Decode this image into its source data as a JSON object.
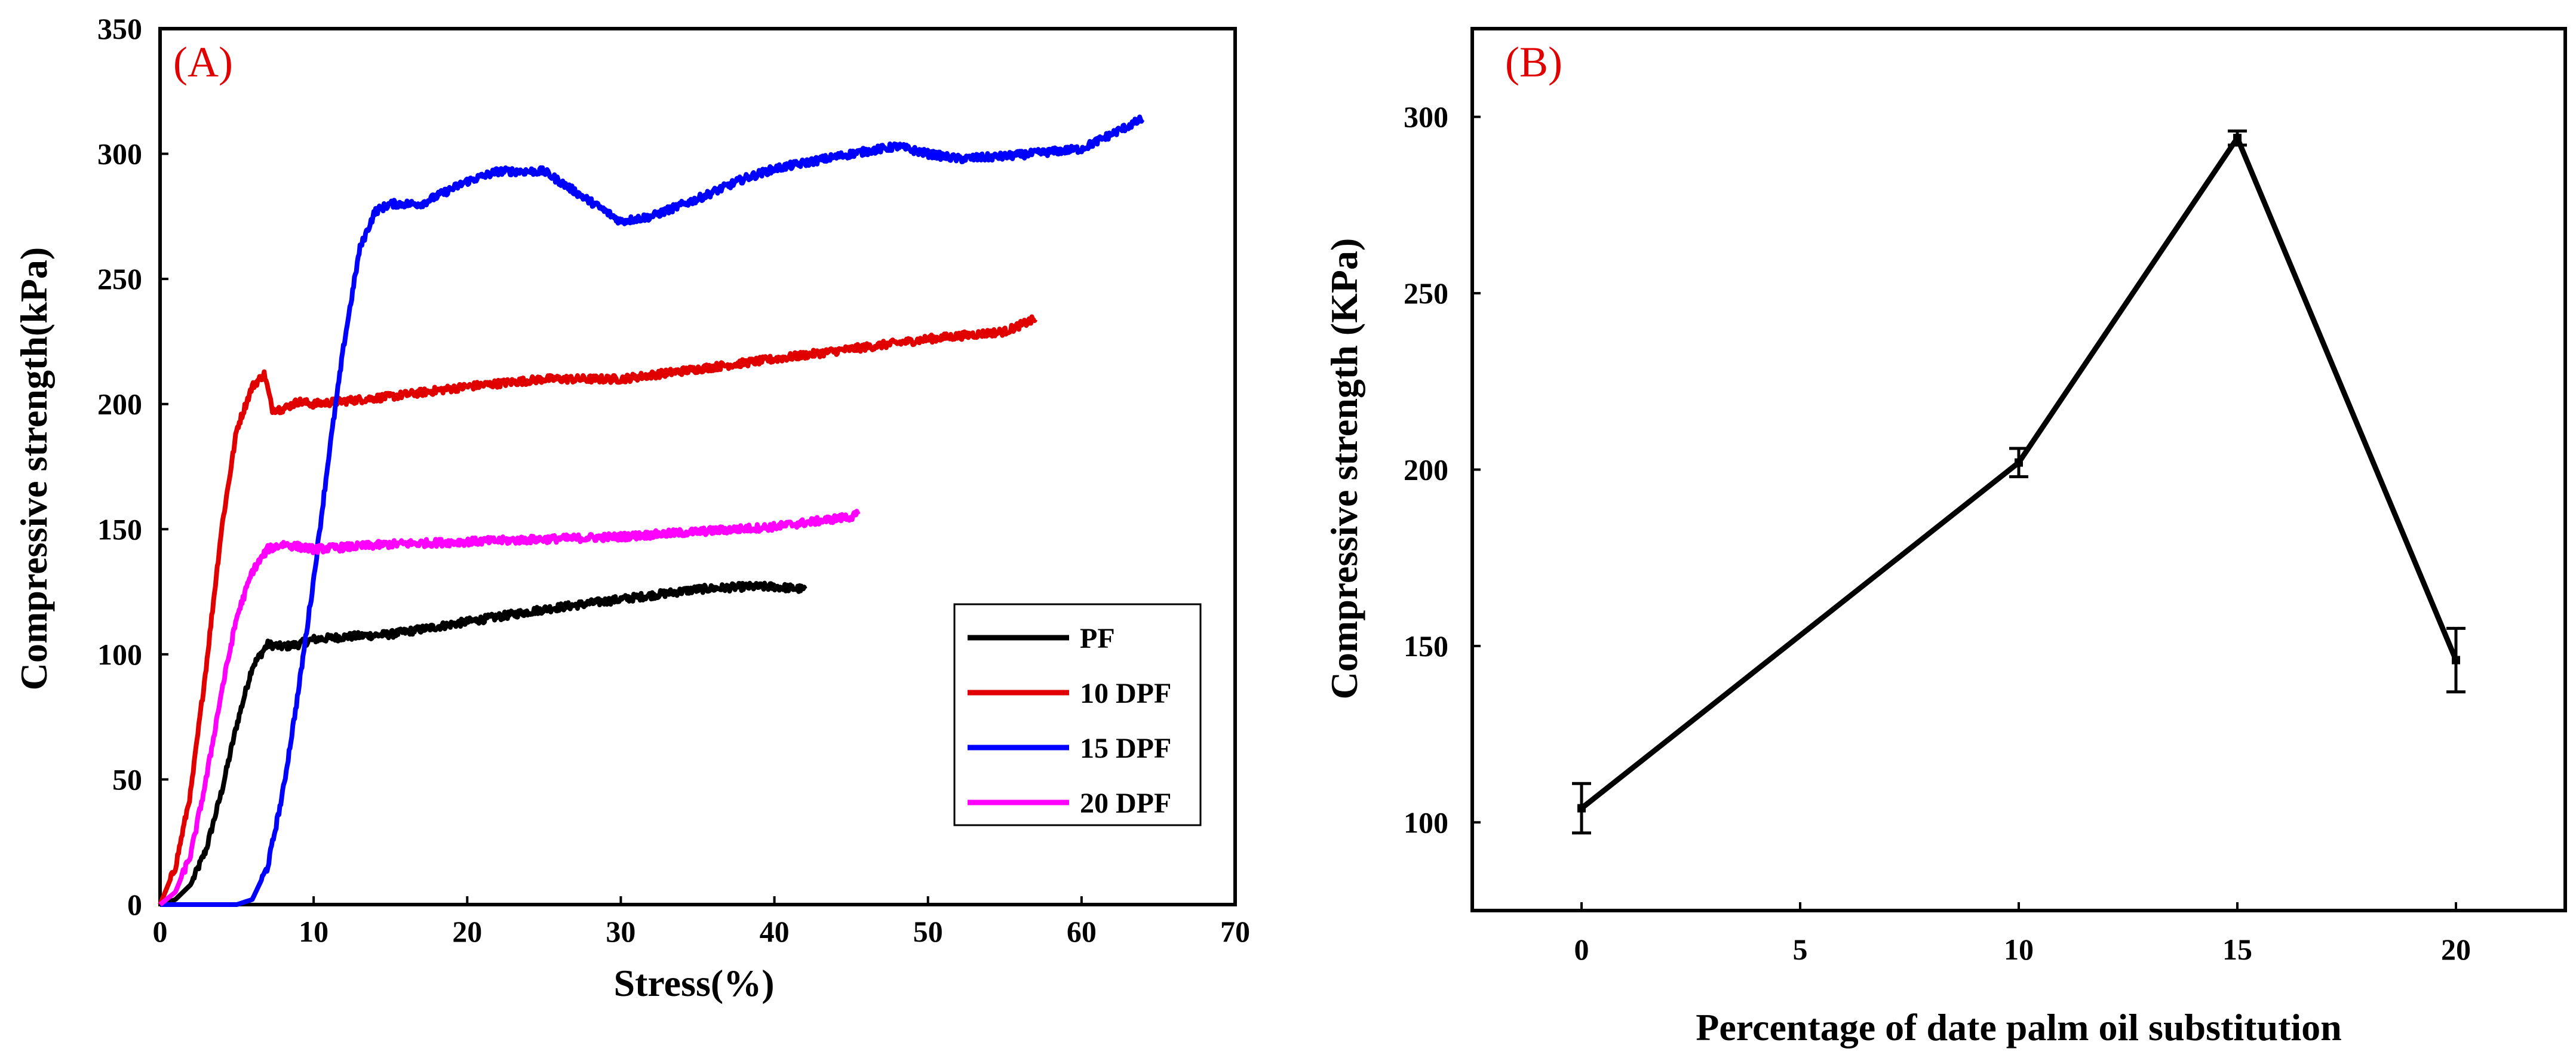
{
  "chart_data": [
    {
      "panel": "(A)",
      "type": "line",
      "title": "",
      "xlabel": "Stress(%)",
      "ylabel": "Compressive strength(kPa)",
      "xlim": [
        0,
        70
      ],
      "ylim": [
        0,
        350
      ],
      "xticks": [
        0,
        10,
        20,
        30,
        40,
        50,
        60,
        70
      ],
      "yticks": [
        0,
        50,
        100,
        150,
        200,
        250,
        300,
        350
      ],
      "legend_position": "lower-right",
      "series": [
        {
          "name": "PF",
          "color": "#000000",
          "x": [
            0,
            1,
            2,
            3,
            4,
            5,
            6,
            7,
            8,
            9,
            10,
            12,
            15,
            20,
            25,
            30,
            35,
            38,
            40,
            42
          ],
          "y": [
            0,
            2,
            8,
            22,
            45,
            72,
            95,
            104,
            103,
            104,
            106,
            107,
            108,
            113,
            118,
            122,
            126,
            127,
            127,
            126
          ]
        },
        {
          "name": "10 DPF",
          "color": "#e00000",
          "x": [
            0,
            1,
            2,
            3,
            4,
            5,
            6,
            6.8,
            7.3,
            8,
            9,
            10,
            15,
            20,
            25,
            30,
            35,
            40,
            45,
            50,
            55,
            57
          ],
          "y": [
            0,
            15,
            45,
            95,
            150,
            190,
            207,
            212,
            198,
            198,
            201,
            200,
            203,
            207,
            210,
            210,
            214,
            218,
            222,
            226,
            229,
            234
          ]
        },
        {
          "name": "15 DPF",
          "color": "#0000ff",
          "x": [
            0,
            3,
            5,
            6,
            7,
            8,
            9,
            10,
            11,
            12,
            13,
            14,
            15,
            17,
            20,
            22,
            25,
            27,
            30,
            32,
            35,
            38,
            40,
            45,
            48,
            50,
            52,
            55,
            60,
            62,
            64
          ],
          "y": [
            0,
            0,
            0,
            2,
            15,
            45,
            85,
            130,
            180,
            225,
            262,
            277,
            280,
            280,
            289,
            293,
            293,
            285,
            273,
            275,
            282,
            290,
            294,
            300,
            303,
            300,
            298,
            299,
            302,
            308,
            314
          ]
        },
        {
          "name": "20 DPF",
          "color": "#ff00ff",
          "x": [
            0,
            1,
            2,
            3,
            4,
            5,
            6,
            7,
            7.5,
            8,
            9,
            10,
            15,
            20,
            25,
            30,
            35,
            40,
            45,
            45.5
          ],
          "y": [
            0,
            5,
            20,
            50,
            85,
            115,
            133,
            142,
            143,
            144,
            143,
            142,
            144,
            145,
            146,
            147,
            149,
            151,
            155,
            156
          ]
        }
      ]
    },
    {
      "panel": "(B)",
      "type": "line",
      "title": "",
      "xlabel": "Percentage of date palm oil substitution",
      "ylabel": "Compressive strength (KPa)",
      "xlim": [
        -2.5,
        22.5
      ],
      "ylim": [
        75,
        325
      ],
      "xticks": [
        0,
        5,
        10,
        15,
        20
      ],
      "yticks": [
        100,
        150,
        200,
        250,
        300
      ],
      "series": [
        {
          "name": "Compressive strength",
          "color": "#000000",
          "x": [
            0,
            10,
            15,
            20
          ],
          "y": [
            104,
            202,
            294,
            146
          ],
          "error": [
            7,
            4,
            2,
            9
          ]
        }
      ]
    }
  ]
}
